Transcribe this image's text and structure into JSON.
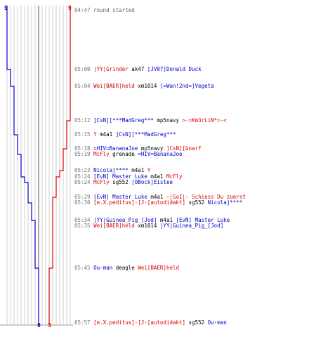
{
  "colors": {
    "blue": "#0000cc",
    "red": "#dd0000",
    "grid": "#bbbbbb",
    "center": "#555555"
  },
  "graph": {
    "blue_start": "9",
    "red_start": "9",
    "blue_end": "0",
    "red_end": "3"
  },
  "events": [
    {
      "time": "04:47",
      "segs": [
        {
          "text": "round started",
          "cls": "note"
        }
      ]
    },
    {
      "time": "05:00",
      "segs": [
        {
          "text": "|YY|Grinder",
          "cls": "team-red"
        },
        {
          "text": " ak47 ",
          "cls": "plain"
        },
        {
          "text": "[JV07]Donald Duck",
          "cls": "team-blue"
        }
      ]
    },
    {
      "time": "05:04",
      "segs": [
        {
          "text": "Wei[BAER]held",
          "cls": "team-red"
        },
        {
          "text": " xm1014 ",
          "cls": "plain"
        },
        {
          "text": "[=Wan!2nd=]Vegeta",
          "cls": "team-blue"
        }
      ]
    },
    {
      "time": "05:12",
      "segs": [
        {
          "text": "]CsN][***MadGreg***",
          "cls": "team-blue"
        },
        {
          "text": " mp5navy ",
          "cls": "plain"
        },
        {
          "text": ">-=Km3rLiN*=-<",
          "cls": "team-red"
        }
      ]
    },
    {
      "time": "05:15",
      "segs": [
        {
          "text": "Y",
          "cls": "team-red"
        },
        {
          "text": " m4a1 ",
          "cls": "plain"
        },
        {
          "text": "]CsN][***MadGreg***",
          "cls": "team-blue"
        }
      ]
    },
    {
      "time": "05:18",
      "segs": [
        {
          "text": "=HIV=BananaJoe",
          "cls": "team-blue"
        },
        {
          "text": " mp5navy ",
          "cls": "plain"
        },
        {
          "text": "]CsN][Gnarf",
          "cls": "team-red"
        }
      ]
    },
    {
      "time": "05:19",
      "segs": [
        {
          "text": "McFly",
          "cls": "team-red"
        },
        {
          "text": " grenade ",
          "cls": "plain"
        },
        {
          "text": "=HIV=BananaJoe",
          "cls": "team-blue"
        }
      ]
    },
    {
      "time": "05:23",
      "segs": [
        {
          "text": "Nicolaj****",
          "cls": "team-blue"
        },
        {
          "text": " m4a1 ",
          "cls": "plain"
        },
        {
          "text": "Y",
          "cls": "team-red"
        }
      ]
    },
    {
      "time": "05:24",
      "segs": [
        {
          "text": "[EvN] Master Luke",
          "cls": "team-blue"
        },
        {
          "text": " m4a1 ",
          "cls": "plain"
        },
        {
          "text": "McFly",
          "cls": "team-red"
        }
      ]
    },
    {
      "time": "05:24",
      "segs": [
        {
          "text": "McFly",
          "cls": "team-red"
        },
        {
          "text": " sg552 ",
          "cls": "plain"
        },
        {
          "text": "[0Bock]Eistee",
          "cls": "team-blue"
        }
      ]
    },
    {
      "time": "05:29",
      "segs": [
        {
          "text": "[EvN] Master Luke",
          "cls": "team-blue"
        },
        {
          "text": " m4a1 ",
          "cls": "plain"
        },
        {
          "text": "-|SoI|- Schiess Du zuerst",
          "cls": "team-red"
        }
      ]
    },
    {
      "time": "05:30",
      "segs": [
        {
          "text": "[e.X.peditus]-[J-[autodidakt]",
          "cls": "team-red"
        },
        {
          "text": " sg552 ",
          "cls": "plain"
        },
        {
          "text": "Nicolaj****",
          "cls": "team-blue"
        }
      ]
    },
    {
      "time": "05:34",
      "segs": [
        {
          "text": "|YY|Guinea_Pig_[Jod]",
          "cls": "team-blue"
        },
        {
          "text": " m4a1 ",
          "cls": "plain"
        },
        {
          "text": "[EvN] Master Luke",
          "cls": "team-blue"
        }
      ]
    },
    {
      "time": "05:35",
      "segs": [
        {
          "text": "Wei[BAER]held",
          "cls": "team-red"
        },
        {
          "text": " xm1014 ",
          "cls": "plain"
        },
        {
          "text": "|YY|Guinea_Pig_[Jod]",
          "cls": "team-blue"
        }
      ]
    },
    {
      "time": "05:45",
      "segs": [
        {
          "text": "Ou-man",
          "cls": "team-blue"
        },
        {
          "text": " deagle ",
          "cls": "plain"
        },
        {
          "text": "Wei[BAER]held",
          "cls": "team-red"
        }
      ]
    },
    {
      "time": "05:57",
      "segs": [
        {
          "text": "[e.X.peditus]-[J-[autodidakt]",
          "cls": "team-red"
        },
        {
          "text": " sg552 ",
          "cls": "plain"
        },
        {
          "text": "Ou-man",
          "cls": "team-blue"
        }
      ]
    }
  ]
}
